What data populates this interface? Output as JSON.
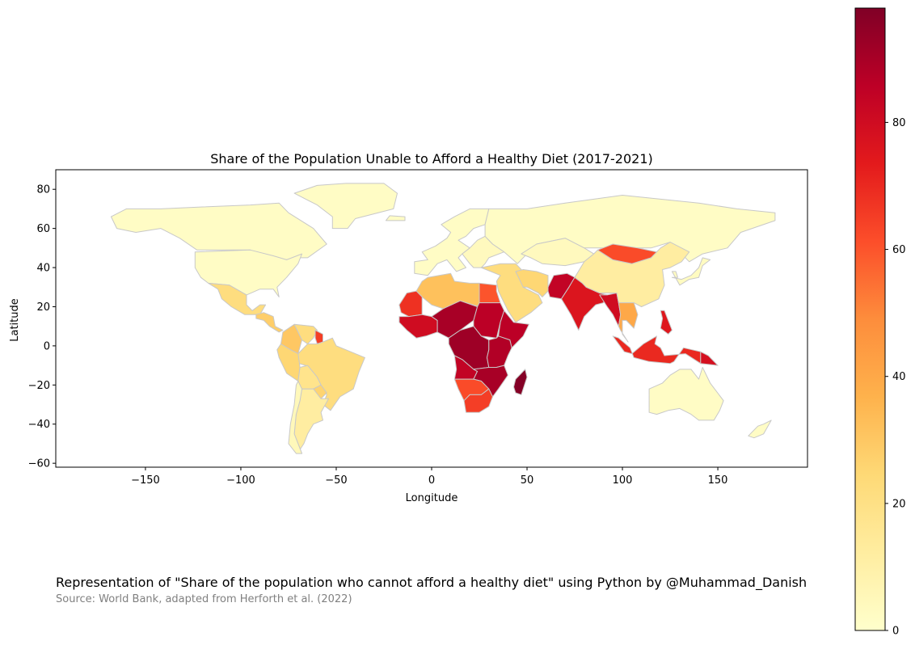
{
  "chart_data": {
    "type": "choropleth",
    "title": "Share of the Population Unable to Afford a Healthy Diet (2017-2021)",
    "xlabel": "Longitude",
    "ylabel": "Latitude",
    "xlim": [
      -197,
      197
    ],
    "ylim": [
      -62,
      90
    ],
    "xticks": [
      -150,
      -100,
      -50,
      0,
      50,
      100,
      150
    ],
    "xtick_labels": [
      "−150",
      "−100",
      "−50",
      "0",
      "50",
      "100",
      "150"
    ],
    "yticks": [
      -60,
      -40,
      -20,
      0,
      20,
      40,
      60,
      80
    ],
    "ytick_labels": [
      "−60",
      "−40",
      "−20",
      "0",
      "20",
      "40",
      "60",
      "80"
    ],
    "colorbar": {
      "colormap": "YlOrRd",
      "range": [
        0,
        98
      ],
      "ticks": [
        0,
        20,
        40,
        60,
        80
      ],
      "tick_labels": [
        "0",
        "20",
        "40",
        "60",
        "80"
      ]
    },
    "country_edge_color": "#c8c8c8",
    "regions": [
      {
        "region": "Greenland",
        "share": 2
      },
      {
        "region": "Canada and Alaska",
        "share": 2
      },
      {
        "region": "United States",
        "share": 2
      },
      {
        "region": "Mexico",
        "share": 22
      },
      {
        "region": "Central America",
        "share": 28
      },
      {
        "region": "Colombia",
        "share": 30
      },
      {
        "region": "Venezuela",
        "share": 22
      },
      {
        "region": "Guyana",
        "share": 65
      },
      {
        "region": "Brazil",
        "share": 22
      },
      {
        "region": "Peru and Ecuador",
        "share": 25
      },
      {
        "region": "Bolivia",
        "share": 18
      },
      {
        "region": "Paraguay",
        "share": 26
      },
      {
        "region": "Argentina",
        "share": 12
      },
      {
        "region": "Chile",
        "share": 5
      },
      {
        "region": "Iceland",
        "share": 2
      },
      {
        "region": "Western Europe",
        "share": 2
      },
      {
        "region": "Eastern Europe",
        "share": 4
      },
      {
        "region": "Russia",
        "share": 2
      },
      {
        "region": "Kazakhstan",
        "share": 4
      },
      {
        "region": "Algeria and Libya",
        "share": 32
      },
      {
        "region": "Egypt",
        "share": 60
      },
      {
        "region": "Mauritania",
        "share": 68
      },
      {
        "region": "West Africa",
        "share": 80
      },
      {
        "region": "Niger Chad Nigeria",
        "share": 90
      },
      {
        "region": "Sudan",
        "share": 86
      },
      {
        "region": "Ethiopia and Horn",
        "share": 86
      },
      {
        "region": "Middle Africa",
        "share": 92
      },
      {
        "region": "East Africa",
        "share": 88
      },
      {
        "region": "Angola",
        "share": 84
      },
      {
        "region": "Zambia Zimbabwe Mozambique",
        "share": 90
      },
      {
        "region": "Namibia and Botswana",
        "share": 62
      },
      {
        "region": "South Africa",
        "share": 65
      },
      {
        "region": "Madagascar",
        "share": 97
      },
      {
        "region": "Middle East",
        "share": 22
      },
      {
        "region": "Iran",
        "share": 25
      },
      {
        "region": "Pakistan",
        "share": 84
      },
      {
        "region": "India",
        "share": 76
      },
      {
        "region": "Bangladesh and Myanmar",
        "share": 80
      },
      {
        "region": "China",
        "share": 12
      },
      {
        "region": "Mongolia",
        "share": 62
      },
      {
        "region": "Southeast Asia mainland",
        "share": 40
      },
      {
        "region": "Indonesia",
        "share": 70
      },
      {
        "region": "Philippines",
        "share": 75
      },
      {
        "region": "Papua New Guinea",
        "share": 78
      },
      {
        "region": "Japan and Korea",
        "share": 3
      },
      {
        "region": "Australia",
        "share": 2
      },
      {
        "region": "New Zealand",
        "share": 2
      }
    ]
  },
  "caption": "Representation of \"Share of the population who cannot afford a healthy diet\" using Python by @Muhammad_Danish",
  "source": "Source: World Bank, adapted from Herforth et al. (2022)"
}
